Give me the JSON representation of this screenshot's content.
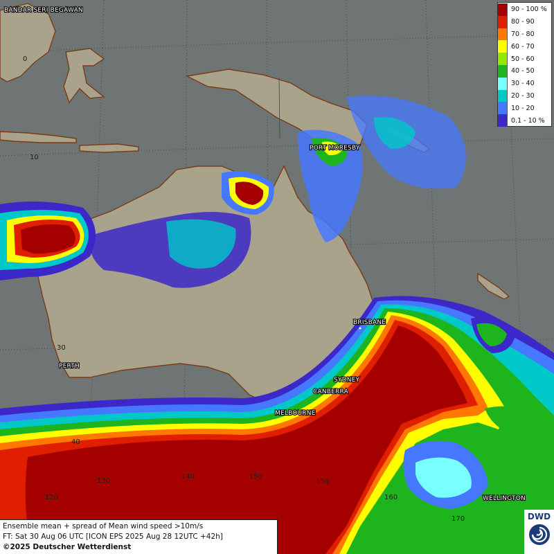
{
  "legend": {
    "items": [
      {
        "label": "90 - 100 %",
        "color": "#a50000"
      },
      {
        "label": "80 - 90",
        "color": "#e01e00"
      },
      {
        "label": "70 - 80",
        "color": "#ff7800"
      },
      {
        "label": "60 - 70",
        "color": "#ffff00"
      },
      {
        "label": "50 - 60",
        "color": "#96e600"
      },
      {
        "label": "40 - 50",
        "color": "#1eb41e"
      },
      {
        "label": "30 - 40",
        "color": "#78ffff"
      },
      {
        "label": "20 - 30",
        "color": "#00c8c8"
      },
      {
        "label": "10 - 20",
        "color": "#4678ff"
      },
      {
        "label": "0.1 - 10 %",
        "color": "#3c28c8"
      }
    ]
  },
  "cities": {
    "bandar": "BANDAR SERI BEGAWAN",
    "port_moresby": "PORT MORESBY",
    "brisbane": "BRISBANE",
    "sydney": "SYDNEY",
    "canberra": "CANBERRA",
    "melbourne": "MELBOURNE",
    "perth": "PERTH",
    "wellington": "WELLINGTON"
  },
  "grid_labels": {
    "lat_0": "0",
    "lat_10": "10",
    "lat_30": "30",
    "lat_40": "40",
    "lon_120": "120",
    "lon_130": "130",
    "lon_140": "140",
    "lon_150": "150",
    "lon_160": "160",
    "lon_170": "170"
  },
  "info": {
    "line1": "Ensemble mean + spread of Mean wind speed >10m/s",
    "line2": "FT: Sat 30 Aug 06 UTC [ICON EPS 2025 Aug 28 12UTC +42h]",
    "line3": "©2025 Deutscher Wetterdienst"
  },
  "logo": {
    "text": "DWD"
  }
}
